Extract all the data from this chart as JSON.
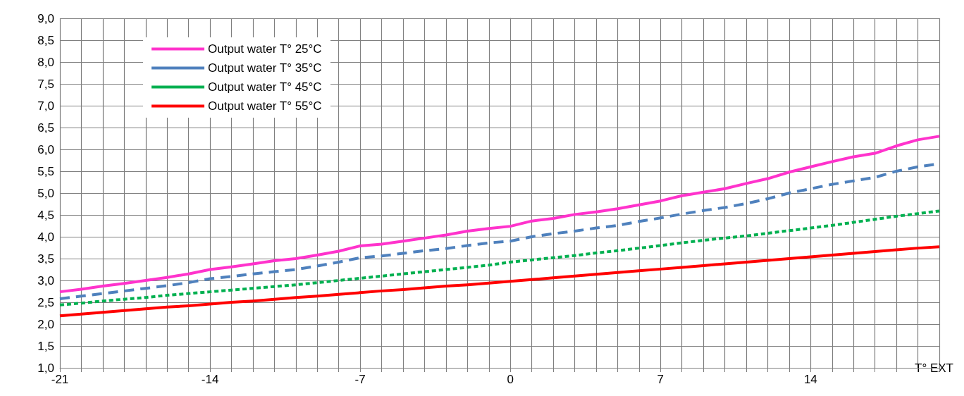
{
  "chart_data": {
    "type": "line",
    "xlabel": "T° EXT",
    "x": [
      -21,
      -20,
      -19,
      -18,
      -17,
      -16,
      -15,
      -14,
      -13,
      -12,
      -11,
      -10,
      -9,
      -8,
      -7,
      -6,
      -5,
      -4,
      -3,
      -2,
      -1,
      0,
      1,
      2,
      3,
      4,
      5,
      6,
      7,
      8,
      9,
      10,
      11,
      12,
      13,
      14,
      15,
      16,
      17,
      18,
      19,
      20
    ],
    "series": [
      {
        "name": "Output water T° 25°C",
        "color": "#ff33cc",
        "line_style": "solid",
        "values": [
          2.74,
          2.8,
          2.87,
          2.93,
          3.0,
          3.07,
          3.15,
          3.25,
          3.31,
          3.38,
          3.45,
          3.5,
          3.58,
          3.67,
          3.79,
          3.83,
          3.9,
          3.97,
          4.04,
          4.13,
          4.19,
          4.24,
          4.36,
          4.42,
          4.51,
          4.57,
          4.64,
          4.73,
          4.82,
          4.94,
          5.02,
          5.1,
          5.22,
          5.33,
          5.48,
          5.6,
          5.72,
          5.83,
          5.91,
          6.08,
          6.22,
          6.3
        ]
      },
      {
        "name": "Output water T° 35°C",
        "color": "#4f81bd",
        "line_style": "dashed",
        "values": [
          2.58,
          2.64,
          2.7,
          2.76,
          2.82,
          2.88,
          2.95,
          3.04,
          3.09,
          3.15,
          3.2,
          3.25,
          3.33,
          3.42,
          3.52,
          3.56,
          3.62,
          3.68,
          3.73,
          3.8,
          3.86,
          3.9,
          4.0,
          4.07,
          4.13,
          4.2,
          4.26,
          4.35,
          4.43,
          4.52,
          4.6,
          4.67,
          4.76,
          4.87,
          5.0,
          5.1,
          5.2,
          5.28,
          5.36,
          5.5,
          5.6,
          5.67
        ]
      },
      {
        "name": "Output water T° 45°C",
        "color": "#00b050",
        "line_style": "dotted",
        "values": [
          2.44,
          2.48,
          2.53,
          2.57,
          2.61,
          2.66,
          2.7,
          2.74,
          2.78,
          2.82,
          2.86,
          2.9,
          2.95,
          3.0,
          3.05,
          3.1,
          3.15,
          3.2,
          3.25,
          3.3,
          3.35,
          3.42,
          3.47,
          3.52,
          3.57,
          3.63,
          3.68,
          3.74,
          3.8,
          3.86,
          3.92,
          3.97,
          4.02,
          4.08,
          4.14,
          4.2,
          4.26,
          4.33,
          4.4,
          4.47,
          4.53,
          4.59
        ]
      },
      {
        "name": "Output water T° 55°C",
        "color": "#ff0000",
        "line_style": "solid",
        "values": [
          2.19,
          2.23,
          2.27,
          2.31,
          2.35,
          2.39,
          2.42,
          2.46,
          2.5,
          2.53,
          2.57,
          2.61,
          2.64,
          2.68,
          2.72,
          2.76,
          2.79,
          2.83,
          2.87,
          2.9,
          2.94,
          2.98,
          3.02,
          3.06,
          3.1,
          3.14,
          3.18,
          3.22,
          3.26,
          3.3,
          3.34,
          3.38,
          3.42,
          3.46,
          3.5,
          3.54,
          3.58,
          3.62,
          3.66,
          3.7,
          3.74,
          3.77
        ]
      }
    ],
    "xlim": [
      -21,
      20
    ],
    "xticks": [
      -21,
      {
        "value": -20,
        "label": null
      },
      {
        "value": -19,
        "label": null
      },
      {
        "value": -18,
        "label": null
      },
      {
        "value": -17,
        "label": null
      },
      {
        "value": -16,
        "label": null
      },
      {
        "value": -15,
        "label": null
      },
      -14,
      {
        "value": -13,
        "label": null
      },
      {
        "value": -12,
        "label": null
      },
      {
        "value": -11,
        "label": null
      },
      {
        "value": -10,
        "label": null
      },
      {
        "value": -9,
        "label": null
      },
      {
        "value": -8,
        "label": null
      },
      -7,
      {
        "value": -6,
        "label": null
      },
      {
        "value": -5,
        "label": null
      },
      {
        "value": -4,
        "label": null
      },
      {
        "value": -3,
        "label": null
      },
      {
        "value": -2,
        "label": null
      },
      {
        "value": -1,
        "label": null
      },
      0,
      {
        "value": 1,
        "label": null
      },
      {
        "value": 2,
        "label": null
      },
      {
        "value": 3,
        "label": null
      },
      {
        "value": 4,
        "label": null
      },
      {
        "value": 5,
        "label": null
      },
      {
        "value": 6,
        "label": null
      },
      7,
      {
        "value": 8,
        "label": null
      },
      {
        "value": 9,
        "label": null
      },
      {
        "value": 10,
        "label": null
      },
      {
        "value": 11,
        "label": null
      },
      {
        "value": 12,
        "label": null
      },
      {
        "value": 13,
        "label": null
      },
      14,
      {
        "value": 15,
        "label": null
      },
      {
        "value": 16,
        "label": null
      },
      {
        "value": 17,
        "label": null
      },
      {
        "value": 18,
        "label": null
      },
      {
        "value": 19,
        "label": null
      },
      {
        "value": 20,
        "label": null
      }
    ],
    "ylim": [
      1,
      9
    ],
    "yticks": [
      {
        "value": 1,
        "label": "1,0"
      },
      {
        "value": 1.5,
        "label": "1,5"
      },
      {
        "value": 2,
        "label": "2,0"
      },
      {
        "value": 2.5,
        "label": "2,5"
      },
      {
        "value": 3,
        "label": "3,0"
      },
      {
        "value": 3.5,
        "label": "3,5"
      },
      {
        "value": 4,
        "label": "4,0"
      },
      {
        "value": 4.5,
        "label": "4,5"
      },
      {
        "value": 5,
        "label": "5,0"
      },
      {
        "value": 5.5,
        "label": "5,5"
      },
      {
        "value": 6,
        "label": "6,0"
      },
      {
        "value": 6.5,
        "label": "6,5"
      },
      {
        "value": 7,
        "label": "7,0"
      },
      {
        "value": 7.5,
        "label": "7,5"
      },
      {
        "value": 8,
        "label": "8,0"
      },
      {
        "value": 8.5,
        "label": "8,5"
      },
      {
        "value": 9,
        "label": "9,0"
      }
    ],
    "grid": true,
    "legend": "top left",
    "marker": "none"
  }
}
